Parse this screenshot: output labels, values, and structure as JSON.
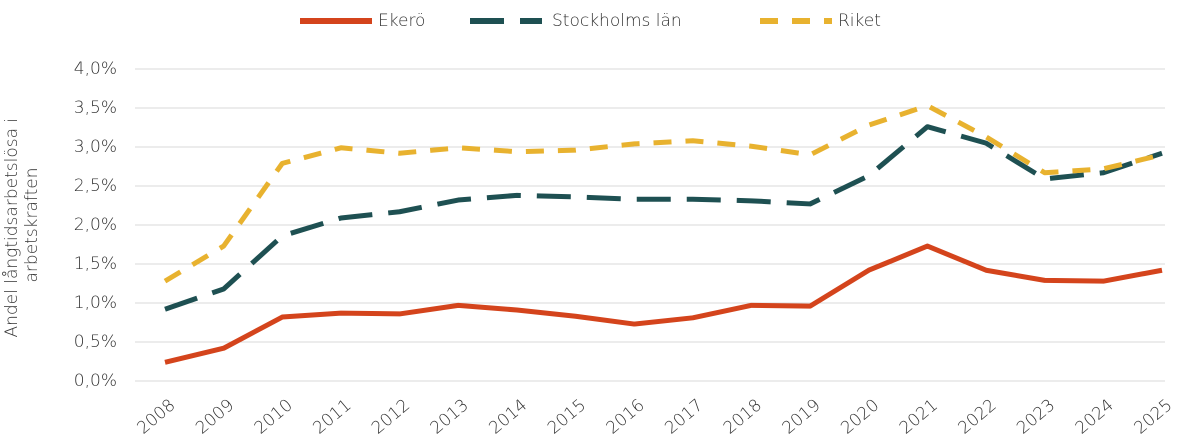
{
  "chart_data": {
    "type": "line",
    "ylabel": [
      "Andel långtidsarbetslösa i",
      "arbetskraften"
    ],
    "categories": [
      "2008",
      "2009",
      "2010",
      "2011",
      "2012",
      "2013",
      "2014",
      "2015",
      "2016",
      "2017",
      "2018",
      "2019",
      "2020",
      "2021",
      "2022",
      "2023",
      "2024",
      "2025"
    ],
    "series": [
      {
        "name": "Ekerö",
        "color": "#d4441c",
        "dash": "solid",
        "values": [
          0.24,
          0.42,
          0.82,
          0.87,
          0.86,
          0.97,
          0.91,
          0.83,
          0.73,
          0.81,
          0.97,
          0.96,
          1.42,
          1.73,
          1.42,
          1.29,
          1.28,
          1.42
        ]
      },
      {
        "name": "Stockholms län",
        "color": "#1e5052",
        "dash": "long",
        "values": [
          0.92,
          1.18,
          1.86,
          2.09,
          2.17,
          2.32,
          2.38,
          2.36,
          2.33,
          2.33,
          2.31,
          2.27,
          2.63,
          3.26,
          3.05,
          2.59,
          2.67,
          2.92
        ]
      },
      {
        "name": "Riket",
        "color": "#e8b22f",
        "dash": "short",
        "values": [
          1.28,
          1.73,
          2.79,
          2.99,
          2.92,
          2.99,
          2.94,
          2.96,
          3.04,
          3.08,
          3.01,
          2.9,
          3.28,
          3.53,
          3.13,
          2.67,
          2.72,
          2.9
        ]
      }
    ],
    "ylim": [
      0,
      4
    ],
    "yticks": [
      {
        "value": 0,
        "label": "0,0%"
      },
      {
        "value": 0.5,
        "label": "0,5%"
      },
      {
        "value": 1,
        "label": "1,0%"
      },
      {
        "value": 1.5,
        "label": "1,5%"
      },
      {
        "value": 2,
        "label": "2,0%"
      },
      {
        "value": 2.5,
        "label": "2,5%"
      },
      {
        "value": 3,
        "label": "3,0%"
      },
      {
        "value": 3.5,
        "label": "3,5%"
      },
      {
        "value": 4,
        "label": "4,0%"
      }
    ],
    "grid": true,
    "legend": "top"
  }
}
